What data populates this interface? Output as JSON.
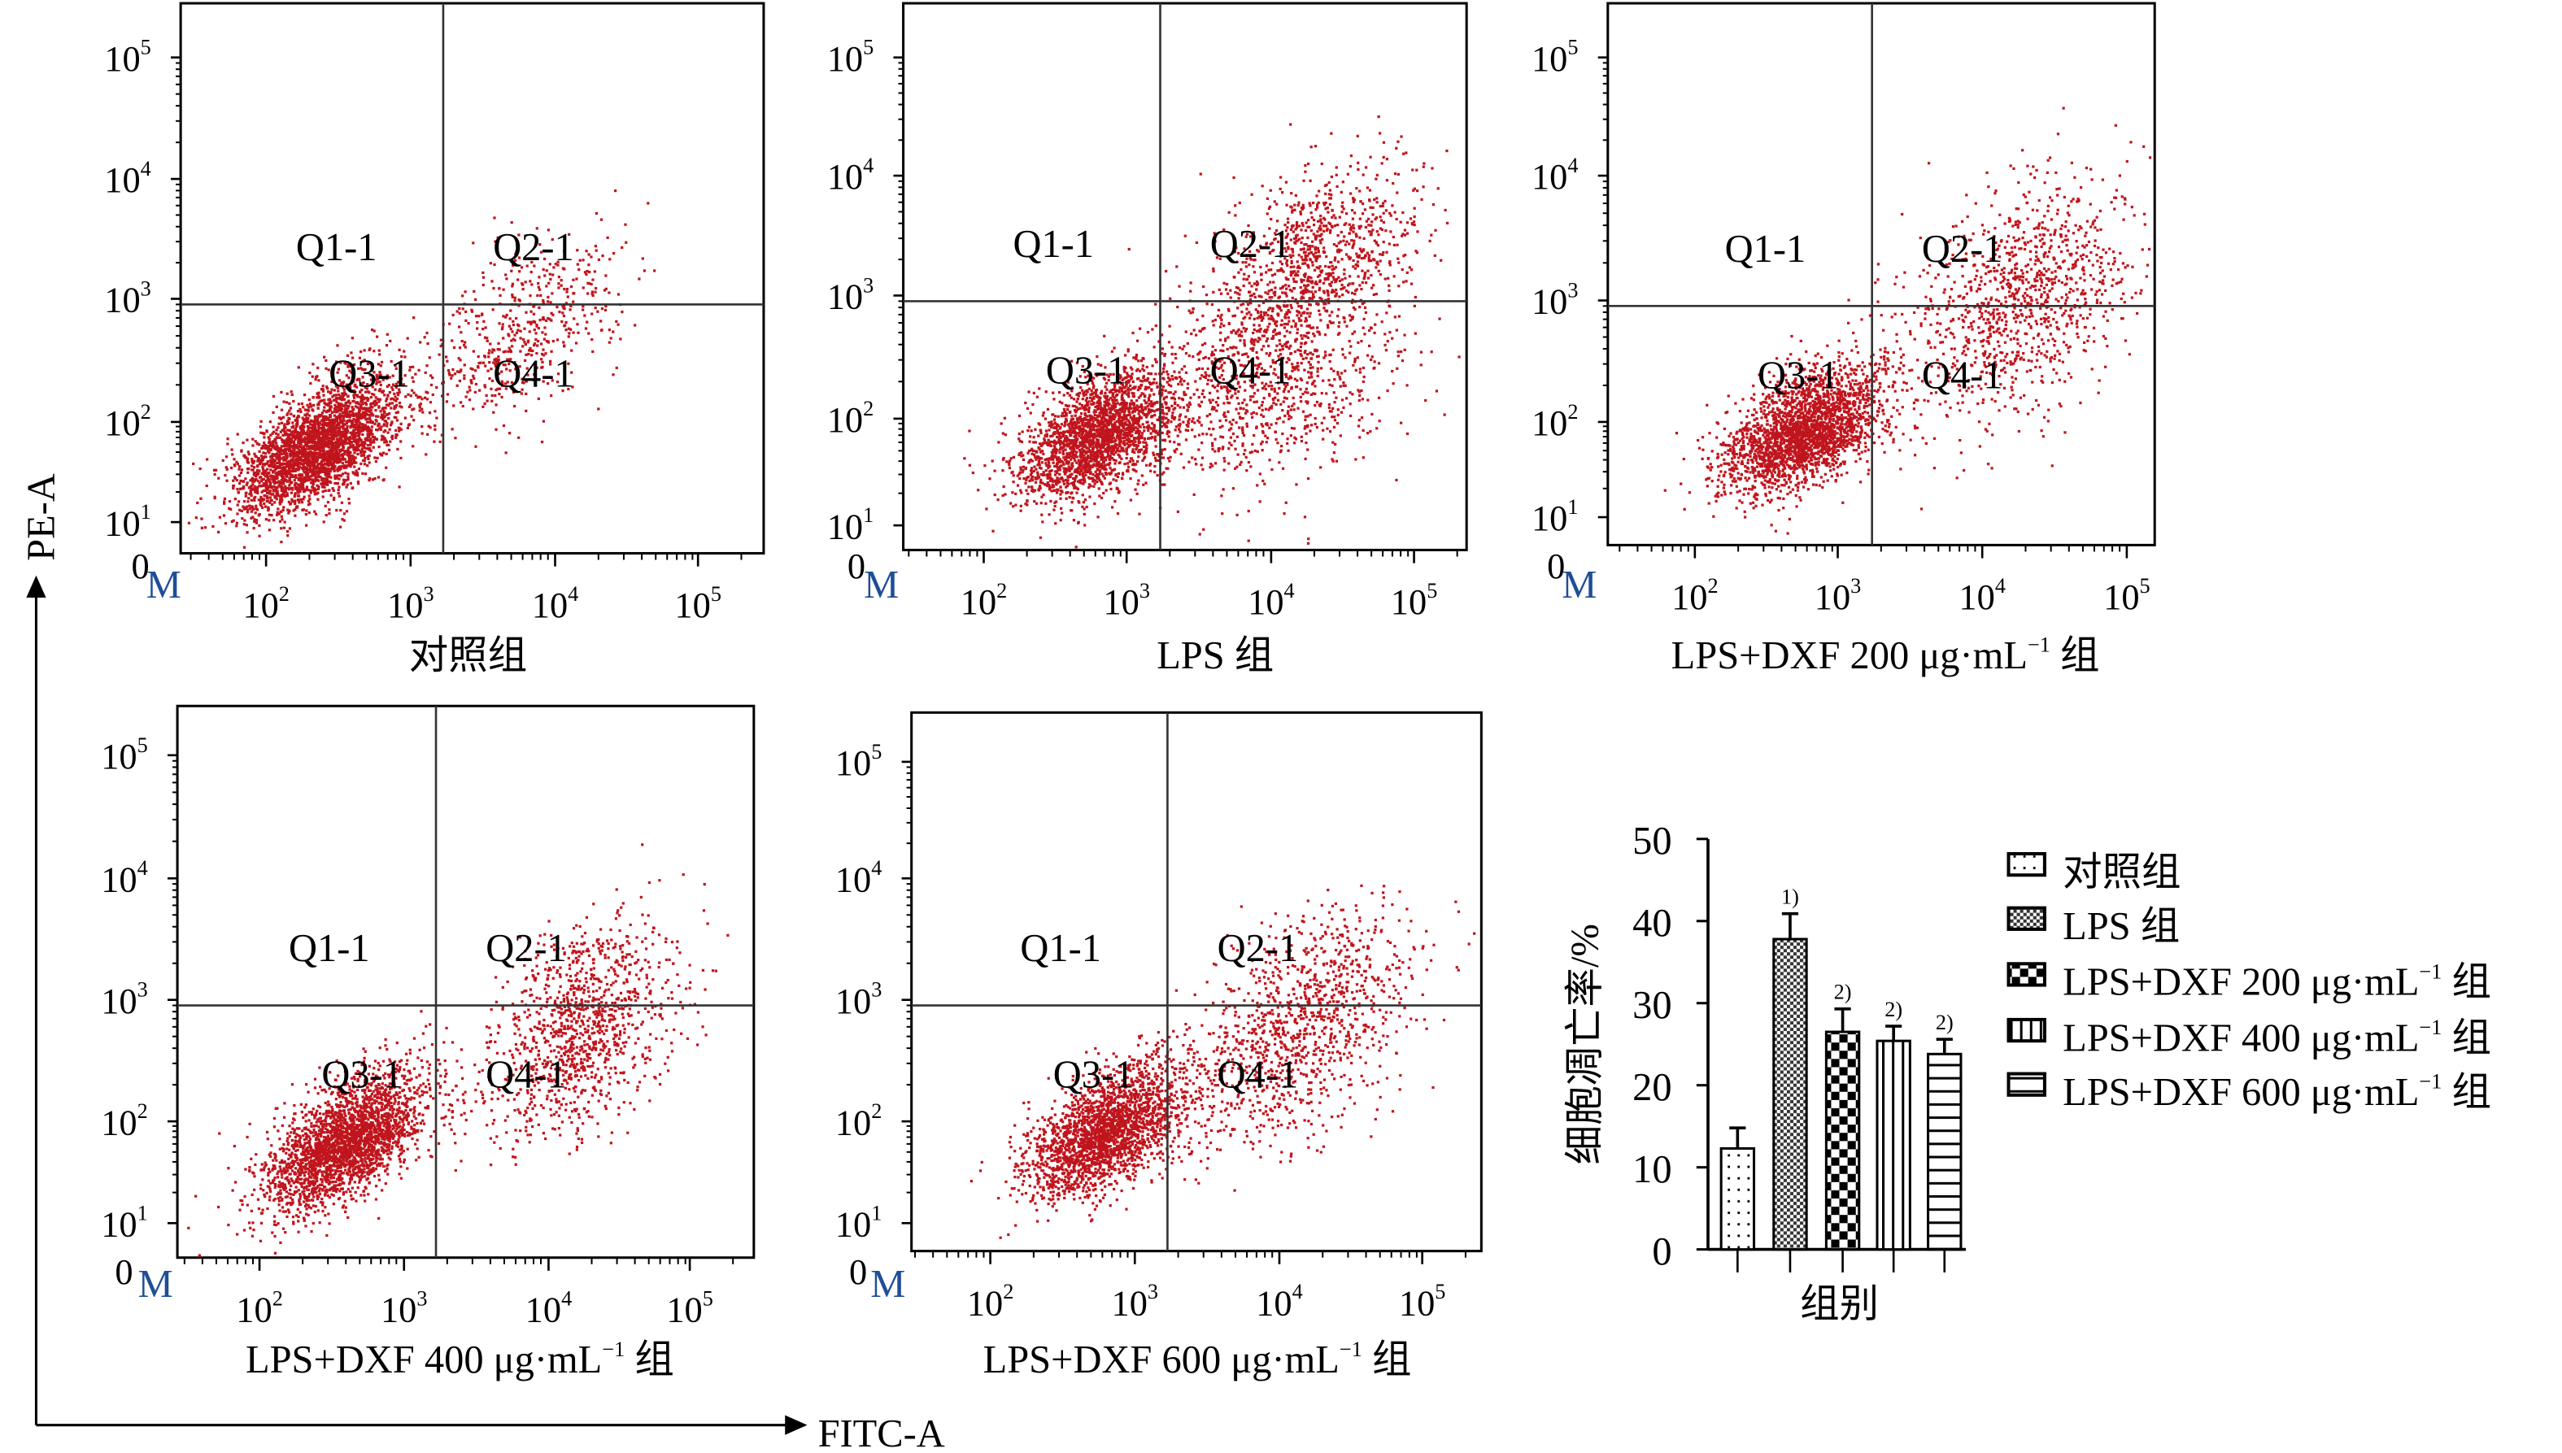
{
  "chart_data": [
    {
      "type": "scatter",
      "panel": 1,
      "title": {
        "text": "对照组",
        "sup": "",
        "tail": ""
      },
      "xlabel": "FITC-A",
      "ylabel": "PE-A",
      "xscale": "log",
      "yscale": "log",
      "x_ticks": [
        {
          "b": "10",
          "e": "2"
        },
        {
          "b": "10",
          "e": "3"
        },
        {
          "b": "10",
          "e": "4"
        },
        {
          "b": "10",
          "e": "5"
        }
      ],
      "y_ticks": [
        {
          "b": "10",
          "e": "1"
        },
        {
          "b": "10",
          "e": "2"
        },
        {
          "b": "10",
          "e": "3"
        },
        {
          "b": "10",
          "e": "4"
        },
        {
          "b": "10",
          "e": "5"
        }
      ],
      "zero_label": "0",
      "marker_label": "M",
      "quadrant_labels": [
        "Q1-1",
        "Q2-1",
        "Q3-1",
        "Q4-1"
      ],
      "gate": {
        "fitc": 1700,
        "pe": 900
      },
      "clusters_log10": [
        {
          "x": 2.35,
          "y": 1.75,
          "sx": 0.28,
          "sy": 0.32,
          "rho": 0.6,
          "n": 3000
        },
        {
          "x": 3.75,
          "y": 2.75,
          "sx": 0.35,
          "sy": 0.38,
          "rho": 0.5,
          "n": 550
        }
      ]
    },
    {
      "type": "scatter",
      "panel": 2,
      "title": {
        "text": "LPS 组",
        "sup": "",
        "tail": ""
      },
      "x_ticks": [
        {
          "b": "10",
          "e": "2"
        },
        {
          "b": "10",
          "e": "3"
        },
        {
          "b": "10",
          "e": "4"
        },
        {
          "b": "10",
          "e": "5"
        }
      ],
      "y_ticks": [
        {
          "b": "10",
          "e": "1"
        },
        {
          "b": "10",
          "e": "2"
        },
        {
          "b": "10",
          "e": "3"
        },
        {
          "b": "10",
          "e": "4"
        },
        {
          "b": "10",
          "e": "5"
        }
      ],
      "zero_label": "0",
      "marker_label": "M",
      "quadrant_labels": [
        "Q1-1",
        "Q2-1",
        "Q3-1",
        "Q4-1"
      ],
      "gate": {
        "fitc": 1700,
        "pe": 900
      },
      "clusters_log10": [
        {
          "x": 2.8,
          "y": 1.85,
          "sx": 0.28,
          "sy": 0.3,
          "rho": 0.55,
          "n": 2300
        },
        {
          "x": 4.3,
          "y": 3.3,
          "sx": 0.35,
          "sy": 0.4,
          "rho": 0.4,
          "n": 1000
        },
        {
          "x": 4.0,
          "y": 2.3,
          "sx": 0.45,
          "sy": 0.45,
          "rho": 0.3,
          "n": 900
        }
      ]
    },
    {
      "type": "scatter",
      "panel": 3,
      "title": {
        "text": "LPS+DXF 200 μg·mL",
        "sup": "−1",
        "tail": " 组"
      },
      "x_ticks": [
        {
          "b": "10",
          "e": "2"
        },
        {
          "b": "10",
          "e": "3"
        },
        {
          "b": "10",
          "e": "4"
        },
        {
          "b": "10",
          "e": "5"
        }
      ],
      "y_ticks": [
        {
          "b": "10",
          "e": "1"
        },
        {
          "b": "10",
          "e": "2"
        },
        {
          "b": "10",
          "e": "3"
        },
        {
          "b": "10",
          "e": "4"
        },
        {
          "b": "10",
          "e": "5"
        }
      ],
      "zero_label": "0",
      "marker_label": "M",
      "quadrant_labels": [
        "Q1-1",
        "Q2-1",
        "Q3-1",
        "Q4-1"
      ],
      "gate": {
        "fitc": 1700,
        "pe": 900
      },
      "clusters_log10": [
        {
          "x": 2.75,
          "y": 1.9,
          "sx": 0.28,
          "sy": 0.3,
          "rho": 0.5,
          "n": 2500
        },
        {
          "x": 4.25,
          "y": 3.0,
          "sx": 0.4,
          "sy": 0.5,
          "rho": 0.35,
          "n": 1100
        }
      ]
    },
    {
      "type": "scatter",
      "panel": 4,
      "title": {
        "text": "LPS+DXF 400 μg·mL",
        "sup": "−1",
        "tail": " 组"
      },
      "x_ticks": [
        {
          "b": "10",
          "e": "2"
        },
        {
          "b": "10",
          "e": "3"
        },
        {
          "b": "10",
          "e": "4"
        },
        {
          "b": "10",
          "e": "5"
        }
      ],
      "y_ticks": [
        {
          "b": "10",
          "e": "1"
        },
        {
          "b": "10",
          "e": "2"
        },
        {
          "b": "10",
          "e": "3"
        },
        {
          "b": "10",
          "e": "4"
        },
        {
          "b": "10",
          "e": "5"
        }
      ],
      "zero_label": "0",
      "marker_label": "M",
      "quadrant_labels": [
        "Q1-1",
        "Q2-1",
        "Q3-1",
        "Q4-1"
      ],
      "gate": {
        "fitc": 1700,
        "pe": 900
      },
      "clusters_log10": [
        {
          "x": 2.6,
          "y": 1.8,
          "sx": 0.28,
          "sy": 0.32,
          "rho": 0.6,
          "n": 2600
        },
        {
          "x": 4.25,
          "y": 3.05,
          "sx": 0.3,
          "sy": 0.35,
          "rho": 0.4,
          "n": 550
        },
        {
          "x": 4.2,
          "y": 2.5,
          "sx": 0.35,
          "sy": 0.35,
          "rho": 0.5,
          "n": 600
        }
      ]
    },
    {
      "type": "scatter",
      "panel": 5,
      "title": {
        "text": "LPS+DXF 600 μg·mL",
        "sup": "−1",
        "tail": " 组"
      },
      "x_ticks": [
        {
          "b": "10",
          "e": "2"
        },
        {
          "b": "10",
          "e": "3"
        },
        {
          "b": "10",
          "e": "4"
        },
        {
          "b": "10",
          "e": "5"
        }
      ],
      "y_ticks": [
        {
          "b": "10",
          "e": "1"
        },
        {
          "b": "10",
          "e": "2"
        },
        {
          "b": "10",
          "e": "3"
        },
        {
          "b": "10",
          "e": "4"
        },
        {
          "b": "10",
          "e": "5"
        }
      ],
      "zero_label": "0",
      "marker_label": "M",
      "quadrant_labels": [
        "Q1-1",
        "Q2-1",
        "Q3-1",
        "Q4-1"
      ],
      "gate": {
        "fitc": 1700,
        "pe": 900
      },
      "clusters_log10": [
        {
          "x": 2.8,
          "y": 1.9,
          "sx": 0.27,
          "sy": 0.3,
          "rho": 0.55,
          "n": 2300
        },
        {
          "x": 4.3,
          "y": 3.15,
          "sx": 0.33,
          "sy": 0.35,
          "rho": 0.3,
          "n": 450
        },
        {
          "x": 4.0,
          "y": 2.5,
          "sx": 0.4,
          "sy": 0.4,
          "rho": 0.4,
          "n": 700
        }
      ]
    },
    {
      "type": "bar",
      "categories": [
        {
          "text": "对照组",
          "sup": "",
          "tail": ""
        },
        {
          "text": "LPS 组",
          "sup": "",
          "tail": ""
        },
        {
          "text": "LPS+DXF 200 μg·mL",
          "sup": "−1",
          "tail": " 组"
        },
        {
          "text": "LPS+DXF 400 μg·mL",
          "sup": "−1",
          "tail": " 组"
        },
        {
          "text": "LPS+DXF 600 μg·mL",
          "sup": "−1",
          "tail": " 组"
        }
      ],
      "values": [
        12.3,
        37.8,
        26.5,
        25.4,
        23.8
      ],
      "errors": [
        2.5,
        3.1,
        2.8,
        1.8,
        1.8
      ],
      "annotations": [
        "",
        "1)",
        "2)",
        "2)",
        "2)"
      ],
      "patterns": [
        "dots",
        "fine-check",
        "coarse-check",
        "vertical-lines",
        "horizontal-lines"
      ],
      "xlabel": "组别",
      "ylabel": "细胞凋亡率/%",
      "ylim": [
        0,
        50
      ],
      "y_ticks": [
        "0",
        "10",
        "20",
        "30",
        "40",
        "50"
      ],
      "legend_position": "right"
    }
  ],
  "axes_arrows": {
    "x_label": "FITC-A",
    "y_label": "PE-A"
  },
  "colors": {
    "dots": "#c0151d",
    "marker": "#1f4e96"
  }
}
